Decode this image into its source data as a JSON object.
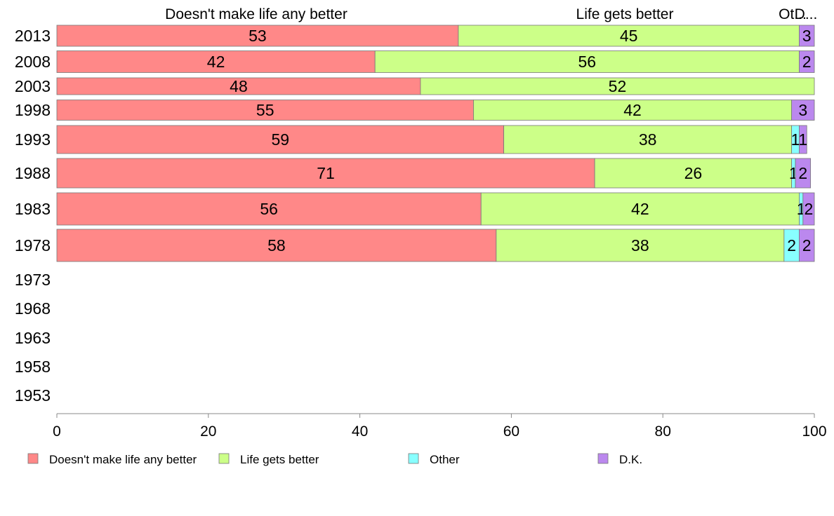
{
  "chart_data": {
    "type": "bar",
    "orientation": "horizontal",
    "stacked": true,
    "categories": [
      "2013",
      "2008",
      "2003",
      "1998",
      "1993",
      "1988",
      "1983",
      "1978",
      "1973",
      "1968",
      "1963",
      "1958",
      "1953"
    ],
    "series": [
      {
        "name": "Doesn't make life any better",
        "color": "#ff8888",
        "values": [
          53,
          42,
          48,
          55,
          59,
          71,
          56,
          58,
          null,
          null,
          null,
          null,
          null
        ]
      },
      {
        "name": "Life gets better",
        "color": "#ccff88",
        "values": [
          45,
          56,
          52,
          42,
          38,
          26,
          42,
          38,
          null,
          null,
          null,
          null,
          null
        ]
      },
      {
        "name": "Other",
        "color": "#88ffff",
        "values": [
          0,
          0,
          0,
          0,
          1,
          0.5,
          0.5,
          2,
          null,
          null,
          null,
          null,
          null
        ]
      },
      {
        "name": "D.K.",
        "color": "#bb88ee",
        "values": [
          3,
          2,
          0,
          3,
          1,
          2,
          2,
          2,
          null,
          null,
          null,
          null,
          null
        ]
      }
    ],
    "data_labels": [
      [
        "53",
        "45",
        "",
        "3"
      ],
      [
        "42",
        "56",
        "",
        "2"
      ],
      [
        "48",
        "52",
        "",
        ""
      ],
      [
        "55",
        "42",
        "",
        "3"
      ],
      [
        "59",
        "38",
        "1",
        "1"
      ],
      [
        "71",
        "26",
        "1",
        "2"
      ],
      [
        "56",
        "42",
        "1",
        "2"
      ],
      [
        "58",
        "38",
        "2",
        "2"
      ]
    ],
    "top_labels": [
      "Doesn't make life any better",
      "Life gets better",
      "Ot...",
      "D..."
    ],
    "xlim": [
      0,
      100
    ],
    "xticks": [
      "0",
      "20",
      "40",
      "60",
      "80",
      "100"
    ],
    "title": "",
    "xlabel": "",
    "ylabel": "",
    "grid": false,
    "legend_position": "bottom"
  }
}
